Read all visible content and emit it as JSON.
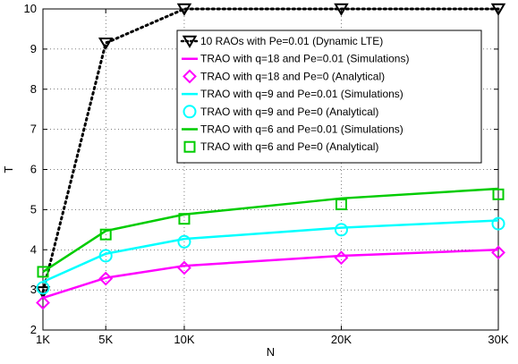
{
  "chart_data": {
    "type": "line",
    "xlabel": "N",
    "ylabel": "T",
    "x_tick_labels": [
      "1K",
      "5K",
      "10K",
      "20K",
      "30K"
    ],
    "x": [
      1000,
      5000,
      10000,
      20000,
      30000
    ],
    "xlim": [
      1000,
      30000
    ],
    "ylim": [
      2,
      10
    ],
    "y_ticks": [
      2,
      3,
      4,
      5,
      6,
      7,
      8,
      9,
      10
    ],
    "grid": true,
    "legend_position": "top-right",
    "series": [
      {
        "name": "10 RAOs with Pe=0.01 (Dynamic LTE)",
        "color": "#000000",
        "style": "dotted",
        "marker": "triangle-down",
        "values": [
          2.95,
          9.15,
          10.0,
          10.0,
          10.0
        ]
      },
      {
        "name": "TRAO with q=18 and Pe=0.01 (Simulations)",
        "color": "#ff00ff",
        "style": "solid",
        "marker": "none",
        "values": [
          2.8,
          3.3,
          3.6,
          3.85,
          4.0
        ]
      },
      {
        "name": "TRAO with q=18 and Pe=0 (Analytical)",
        "color": "#ff00ff",
        "style": "none",
        "marker": "diamond",
        "values": [
          2.68,
          3.28,
          3.55,
          3.8,
          3.93
        ]
      },
      {
        "name": "TRAO with q=9 and Pe=0.01 (Simulations)",
        "color": "#00ffff",
        "style": "solid",
        "marker": "none",
        "values": [
          3.2,
          3.9,
          4.27,
          4.55,
          4.73
        ]
      },
      {
        "name": "TRAO with q=9 and Pe=0 (Analytical)",
        "color": "#00ffff",
        "style": "none",
        "marker": "circle",
        "values": [
          3.05,
          3.85,
          4.2,
          4.5,
          4.65
        ]
      },
      {
        "name": "TRAO with q=6 and Pe=0.01 (Simulations)",
        "color": "#00cc00",
        "style": "solid",
        "marker": "none",
        "values": [
          3.45,
          4.47,
          4.88,
          5.28,
          5.52
        ]
      },
      {
        "name": "TRAO with q=6 and Pe=0 (Analytical)",
        "color": "#00cc00",
        "style": "none",
        "marker": "square",
        "values": [
          3.45,
          4.38,
          4.77,
          5.13,
          5.38
        ]
      }
    ]
  }
}
